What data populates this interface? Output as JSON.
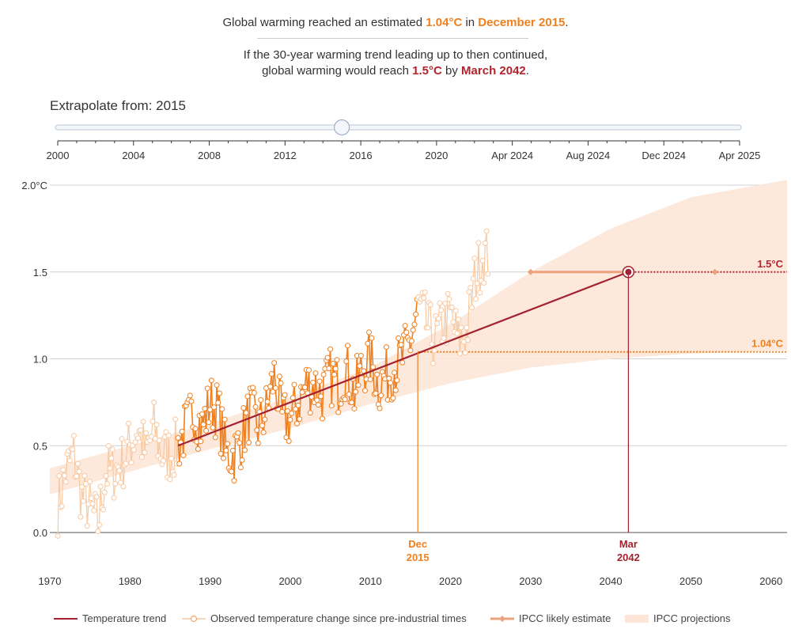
{
  "header": {
    "line1_pre": "Global warming reached an estimated ",
    "line1_value": "1.04°C",
    "line1_mid": " in ",
    "line1_date": "December 2015",
    "line1_end": ".",
    "line2a": "If the 30-year warming trend leading up to then continued,",
    "line2b_pre": "global warming would reach ",
    "line2b_value": "1.5°C",
    "line2b_mid": " by ",
    "line2b_date": "March 2042",
    "line2b_end": "."
  },
  "slider": {
    "label": "Extrapolate from: 2015",
    "value": 2015,
    "ticks": [
      "2000",
      "2004",
      "2008",
      "2012",
      "2016",
      "2020",
      "Apr 2024",
      "Aug 2024",
      "Dec 2024",
      "Apr 2025"
    ]
  },
  "colors": {
    "trend": "#a2232f",
    "observed": "#f07f1e",
    "observed_faded": "#f8c9a1",
    "band": "#fde5d8",
    "ipcc": "#eba27f",
    "grid": "#d0d0d0"
  },
  "legend": {
    "trend": "Temperature trend",
    "observed": "Observed temperature change since pre-industrial times",
    "ipcc_likely": "IPCC likely estimate",
    "ipcc_proj": "IPCC projections"
  },
  "chart_data": {
    "type": "line",
    "xlim": [
      1970,
      2062
    ],
    "ylim": [
      -0.2,
      2.05
    ],
    "x_ticks": [
      1970,
      1980,
      1990,
      2000,
      2010,
      2020,
      2030,
      2040,
      2050,
      2060
    ],
    "y_ticks": [
      {
        "value": 0.0,
        "label": "0.0"
      },
      {
        "value": 0.5,
        "label": "0.5"
      },
      {
        "value": 1.0,
        "label": "1.0"
      },
      {
        "value": 1.5,
        "label": "1.5"
      },
      {
        "value": 2.0,
        "label": "2.0°C"
      }
    ],
    "series": [
      {
        "name": "Temperature trend",
        "x": [
          1986.0,
          2042.2
        ],
        "y": [
          0.5,
          1.5
        ]
      },
      {
        "name": "Observed temperature change since pre-industrial times",
        "x": [
          1971,
          1972,
          1973,
          1974,
          1975,
          1976,
          1977,
          1978,
          1979,
          1980,
          1981,
          1982,
          1983,
          1984,
          1985,
          1986,
          1987,
          1988,
          1989,
          1990,
          1991,
          1992,
          1993,
          1994,
          1995,
          1996,
          1997,
          1998,
          1999,
          2000,
          2001,
          2002,
          2003,
          2004,
          2005,
          2006,
          2007,
          2008,
          2009,
          2010,
          2011,
          2012,
          2013,
          2014,
          2015,
          2016,
          2017,
          2018,
          2019,
          2020,
          2021,
          2022,
          2023,
          2024
        ],
        "y": [
          0.15,
          0.35,
          0.45,
          0.2,
          0.15,
          0.05,
          0.35,
          0.35,
          0.4,
          0.5,
          0.6,
          0.45,
          0.6,
          0.45,
          0.45,
          0.5,
          0.6,
          0.7,
          0.6,
          0.75,
          0.7,
          0.45,
          0.45,
          0.55,
          0.7,
          0.6,
          0.7,
          0.9,
          0.65,
          0.65,
          0.75,
          0.85,
          0.85,
          0.8,
          0.9,
          0.85,
          0.95,
          0.8,
          0.95,
          1.0,
          0.85,
          0.9,
          0.95,
          1.0,
          1.1,
          1.3,
          1.2,
          1.1,
          1.2,
          1.25,
          1.1,
          1.15,
          1.45,
          1.6
        ]
      }
    ],
    "ipcc_projection_band": {
      "x": [
        1970,
        1980,
        1990,
        2000,
        2010,
        2020,
        2030,
        2040,
        2050,
        2062
      ],
      "lower": [
        0.22,
        0.35,
        0.48,
        0.6,
        0.74,
        0.86,
        0.95,
        1.0,
        1.03,
        1.05
      ],
      "upper": [
        0.37,
        0.5,
        0.63,
        0.78,
        0.95,
        1.2,
        1.5,
        1.75,
        1.93,
        2.03
      ]
    },
    "ipcc_likely_range": {
      "x_start": 2030,
      "x_end": 2053,
      "y": 1.5
    },
    "reference_lines": [
      {
        "y": 1.5,
        "label": "1.5°C"
      },
      {
        "y": 1.04,
        "label": "1.04°C"
      }
    ],
    "markers": [
      {
        "x": 2015.92,
        "line1": "Dec",
        "line2": "2015"
      },
      {
        "x": 2042.2,
        "line1": "Mar",
        "line2": "2042"
      }
    ]
  }
}
